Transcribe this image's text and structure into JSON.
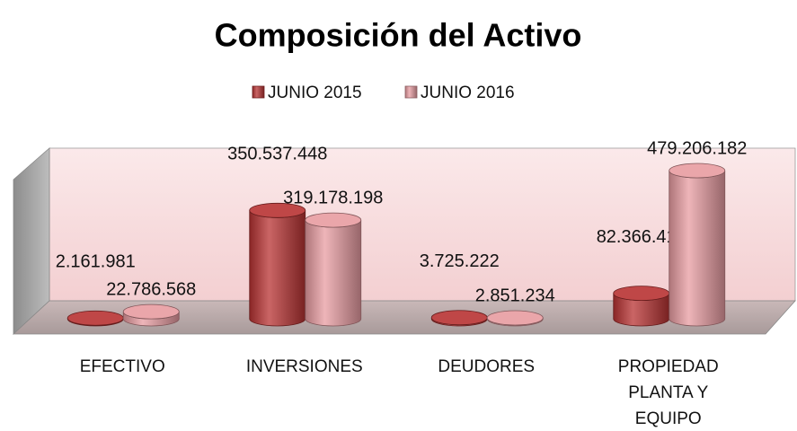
{
  "chart_data": {
    "type": "bar3d",
    "title": "Composición del Activo",
    "categories": [
      "EFECTIVO",
      "INVERSIONES",
      "DEUDORES",
      "PROPIEDAD PLANTA Y EQUIPO"
    ],
    "series": [
      {
        "name": "JUNIO 2015",
        "color": "#b83232",
        "values": [
          2161981,
          350537448,
          3725222,
          82366416
        ],
        "value_labels": [
          "2.161.981",
          "350.537.448",
          "3.725.222",
          "82.366.416"
        ]
      },
      {
        "name": "JUNIO 2016",
        "color": "#e89ca1",
        "values": [
          22786568,
          319178198,
          2851234,
          479206182
        ],
        "value_labels": [
          "22.786.568",
          "319.178.198",
          "2.851.234",
          "479.206.182"
        ]
      }
    ],
    "legend": "top"
  }
}
